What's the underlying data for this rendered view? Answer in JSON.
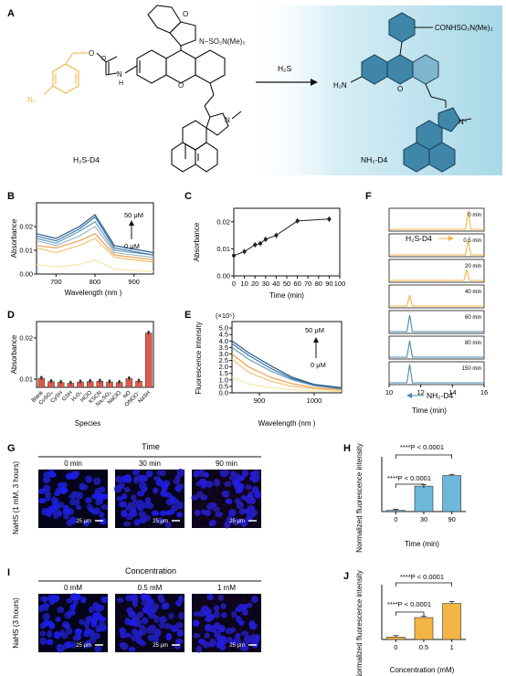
{
  "panel_letters": {
    "A": "A",
    "B": "B",
    "C": "C",
    "D": "D",
    "E": "E",
    "F": "F",
    "G": "G",
    "H": "H",
    "I": "I",
    "J": "J"
  },
  "panelA": {
    "reactant_label": "H₂S-D4",
    "product_label": "NH₂-D4",
    "arrow_label": "H₂S",
    "reactant_groups": {
      "lactam_o": "O",
      "sulfonyl": "N−SO₂N(Me)₂",
      "nh": "N",
      "h": "H",
      "azide": "N₃",
      "ring_o": "O",
      "indole_n": "N"
    },
    "product_groups": {
      "amine": "H₂N",
      "amide": "CONHSO₂N(Me)₂",
      "ring_o": "O",
      "indolium_n": "N⁺"
    },
    "colors": {
      "azide_group": "#f4b544",
      "highlight_bg": "#bfe3ef",
      "ring_fill": "#3f86a8"
    }
  },
  "panelB": {
    "ylabel": "Absorbance",
    "xlabel": "Wavelength (nm )",
    "arrow_top": "50 μM",
    "arrow_bottom": "0 μM",
    "chart_data": {
      "type": "line",
      "x_range": [
        650,
        950
      ],
      "y_range": [
        0.0,
        0.03
      ],
      "xticks": [
        "700",
        "800",
        "900"
      ],
      "yticks": [
        "0.00",
        "0.01",
        "0.02"
      ],
      "series": [
        {
          "color": "#f5e7a8",
          "points": [
            [
              650,
              0.004
            ],
            [
              700,
              0.003
            ],
            [
              760,
              0.004
            ],
            [
              800,
              0.006
            ],
            [
              850,
              0.002
            ],
            [
              950,
              0.001
            ]
          ]
        },
        {
          "color": "#f0c070",
          "points": [
            [
              650,
              0.011
            ],
            [
              700,
              0.009
            ],
            [
              760,
              0.012
            ],
            [
              800,
              0.015
            ],
            [
              850,
              0.007
            ],
            [
              950,
              0.005
            ]
          ]
        },
        {
          "color": "#f0a050",
          "points": [
            [
              650,
              0.012
            ],
            [
              700,
              0.011
            ],
            [
              760,
              0.014
            ],
            [
              800,
              0.017
            ],
            [
              850,
              0.008
            ],
            [
              950,
              0.006
            ]
          ]
        },
        {
          "color": "#9bb8c8",
          "points": [
            [
              650,
              0.014
            ],
            [
              700,
              0.012
            ],
            [
              760,
              0.016
            ],
            [
              800,
              0.02
            ],
            [
              850,
              0.009
            ],
            [
              950,
              0.007
            ]
          ]
        },
        {
          "color": "#6a9bb8",
          "points": [
            [
              650,
              0.015
            ],
            [
              700,
              0.013
            ],
            [
              760,
              0.018
            ],
            [
              800,
              0.022
            ],
            [
              850,
              0.01
            ],
            [
              950,
              0.008
            ]
          ]
        },
        {
          "color": "#3a78a8",
          "points": [
            [
              650,
              0.016
            ],
            [
              700,
              0.014
            ],
            [
              760,
              0.019
            ],
            [
              800,
              0.024
            ],
            [
              850,
              0.011
            ],
            [
              950,
              0.008
            ]
          ]
        },
        {
          "color": "#2a5a8a",
          "points": [
            [
              650,
              0.017
            ],
            [
              700,
              0.015
            ],
            [
              760,
              0.02
            ],
            [
              800,
              0.025
            ],
            [
              850,
              0.012
            ],
            [
              950,
              0.009
            ]
          ]
        }
      ]
    }
  },
  "panelC": {
    "ylabel": "Absorbance",
    "xlabel": "Time (min)",
    "chart_data": {
      "type": "line",
      "x_range": [
        0,
        100
      ],
      "y_range": [
        0.0,
        0.025
      ],
      "xticks": [
        "0",
        "10",
        "20",
        "30",
        "40",
        "50",
        "60",
        "70",
        "80",
        "90",
        "100"
      ],
      "yticks": [
        "0.00",
        "0.01",
        "0.02"
      ],
      "x": [
        0,
        10,
        20,
        25,
        30,
        40,
        60,
        90
      ],
      "y": [
        0.0075,
        0.009,
        0.0115,
        0.012,
        0.0135,
        0.015,
        0.0203,
        0.021
      ]
    }
  },
  "panelD": {
    "ylabel": "Absorbance",
    "xlabel": "Species",
    "chart_data": {
      "type": "bar",
      "y_range": [
        0.008,
        0.024
      ],
      "yticks": [
        "0.01",
        "0.02"
      ],
      "categories": [
        "Blank",
        "CuSO₄",
        "CySH",
        "GSH",
        "H₂O₂",
        "HClO",
        "KSCN",
        "Na₂SO₃",
        "NaClO",
        "NO",
        "ONOO⁻",
        "NaSH"
      ],
      "values": [
        0.0102,
        0.0094,
        0.0092,
        0.009,
        0.0093,
        0.0094,
        0.0095,
        0.0093,
        0.0092,
        0.0101,
        0.0095,
        0.0212
      ],
      "color": "#e05a4a"
    }
  },
  "panelE": {
    "ylabel": "Fluorescence intensity",
    "xlabel": "Wavelength (nm )",
    "multiplier": "(×10⁵)",
    "arrow_top": "50 μM",
    "arrow_bottom": "0 μM",
    "chart_data": {
      "type": "line",
      "x_range": [
        850,
        1050
      ],
      "y_range": [
        0,
        5.5
      ],
      "xticks": [
        "900",
        "1000"
      ],
      "yticks": [
        "0.0",
        "0.5",
        "1.0",
        "1.5",
        "2.0",
        "2.5",
        "3.0",
        "3.5",
        "4.0",
        "4.5",
        "5.0"
      ],
      "series": [
        {
          "color": "#f5e7a8",
          "points": [
            [
              850,
              1.2
            ],
            [
              880,
              0.7
            ],
            [
              920,
              0.4
            ],
            [
              960,
              0.25
            ],
            [
              1000,
              0.15
            ],
            [
              1050,
              0.1
            ]
          ]
        },
        {
          "color": "#f0c070",
          "points": [
            [
              850,
              2.6
            ],
            [
              880,
              1.6
            ],
            [
              920,
              0.9
            ],
            [
              960,
              0.5
            ],
            [
              1000,
              0.3
            ],
            [
              1050,
              0.2
            ]
          ]
        },
        {
          "color": "#f0a050",
          "points": [
            [
              850,
              3.0
            ],
            [
              880,
              2.0
            ],
            [
              920,
              1.2
            ],
            [
              960,
              0.7
            ],
            [
              1000,
              0.4
            ],
            [
              1050,
              0.25
            ]
          ]
        },
        {
          "color": "#6a9bb8",
          "points": [
            [
              850,
              3.5
            ],
            [
              880,
              2.6
            ],
            [
              920,
              1.7
            ],
            [
              960,
              1.0
            ],
            [
              1000,
              0.55
            ],
            [
              1050,
              0.3
            ]
          ]
        },
        {
          "color": "#3a78a8",
          "points": [
            [
              850,
              3.8
            ],
            [
              880,
              2.9
            ],
            [
              920,
              1.9
            ],
            [
              960,
              1.1
            ],
            [
              1000,
              0.6
            ],
            [
              1050,
              0.35
            ]
          ]
        },
        {
          "color": "#2a5a8a",
          "points": [
            [
              850,
              4.0
            ],
            [
              880,
              3.1
            ],
            [
              920,
              2.1
            ],
            [
              960,
              1.2
            ],
            [
              1000,
              0.65
            ],
            [
              1050,
              0.4
            ]
          ]
        }
      ]
    }
  },
  "panelF": {
    "xlabel": "Time (min)",
    "label_reactant": "H₂S-D4",
    "label_product": "NH₂-D4",
    "chart_data": {
      "type": "line",
      "x_range": [
        10,
        16
      ],
      "xticks": [
        "10",
        "12",
        "14",
        "16"
      ],
      "traces": [
        {
          "time": "0 min",
          "color": "#f4b544",
          "peak_x": 15.0,
          "peak_h": 1.0
        },
        {
          "time": "0.5 min",
          "color": "#f4b544",
          "peak_x": 15.0,
          "peak_h": 0.8
        },
        {
          "time": "20 min",
          "color": "#f4b544",
          "peak_x": 14.9,
          "peak_h": 0.6
        },
        {
          "time": "40 min",
          "color": "#f4b544",
          "peak_x": 11.3,
          "peak_h": 0.6
        },
        {
          "time": "60 min",
          "color": "#4a8ab0",
          "peak_x": 11.3,
          "peak_h": 0.9
        },
        {
          "time": "80 min",
          "color": "#4a8ab0",
          "peak_x": 11.3,
          "peak_h": 0.9
        },
        {
          "time": "150 min",
          "color": "#4a8ab0",
          "peak_x": 11.3,
          "peak_h": 1.0
        }
      ]
    }
  },
  "panelG": {
    "header": "Time",
    "ylabel": "NaHS (1 mM, 3 hours)",
    "images": [
      {
        "label": "0 min",
        "scale": "25 μm",
        "red": 0.05
      },
      {
        "label": "30 min",
        "scale": "25 μm",
        "red": 0.35
      },
      {
        "label": "90 min",
        "scale": "25 μm",
        "red": 0.55
      }
    ]
  },
  "panelH": {
    "ylabel": "Normalized fluorescence intensity",
    "xlabel": "Time (min)",
    "sig1": "****P < 0.0001",
    "sig2": "****P < 0.0001",
    "chart_data": {
      "type": "bar",
      "categories": [
        "0",
        "30",
        "90"
      ],
      "values": [
        0.3,
        6.5,
        9.2
      ],
      "errors": [
        0.3,
        0.4,
        0.3
      ],
      "y_range": [
        0,
        14
      ],
      "color": "#6cb8d8"
    }
  },
  "panelI": {
    "header": "Concentration",
    "ylabel": "NaHS (3 hours)",
    "images": [
      {
        "label": "0 mM",
        "scale": "25 μm",
        "red": 0.05
      },
      {
        "label": "0.5 mM",
        "scale": "25 μm",
        "red": 0.4
      },
      {
        "label": "1 mM",
        "scale": "25 μm",
        "red": 0.5
      }
    ]
  },
  "panelJ": {
    "ylabel": "Normalized fluorescence intensity",
    "xlabel": "Concentration (mM)",
    "sig1": "****P < 0.0001",
    "sig2": "****P < 0.0001",
    "chart_data": {
      "type": "bar",
      "categories": [
        "0",
        "0.5",
        "1"
      ],
      "values": [
        0.6,
        5.6,
        9.2
      ],
      "errors": [
        0.4,
        0.3,
        0.5
      ],
      "y_range": [
        0,
        14
      ],
      "color": "#f4b544"
    }
  }
}
